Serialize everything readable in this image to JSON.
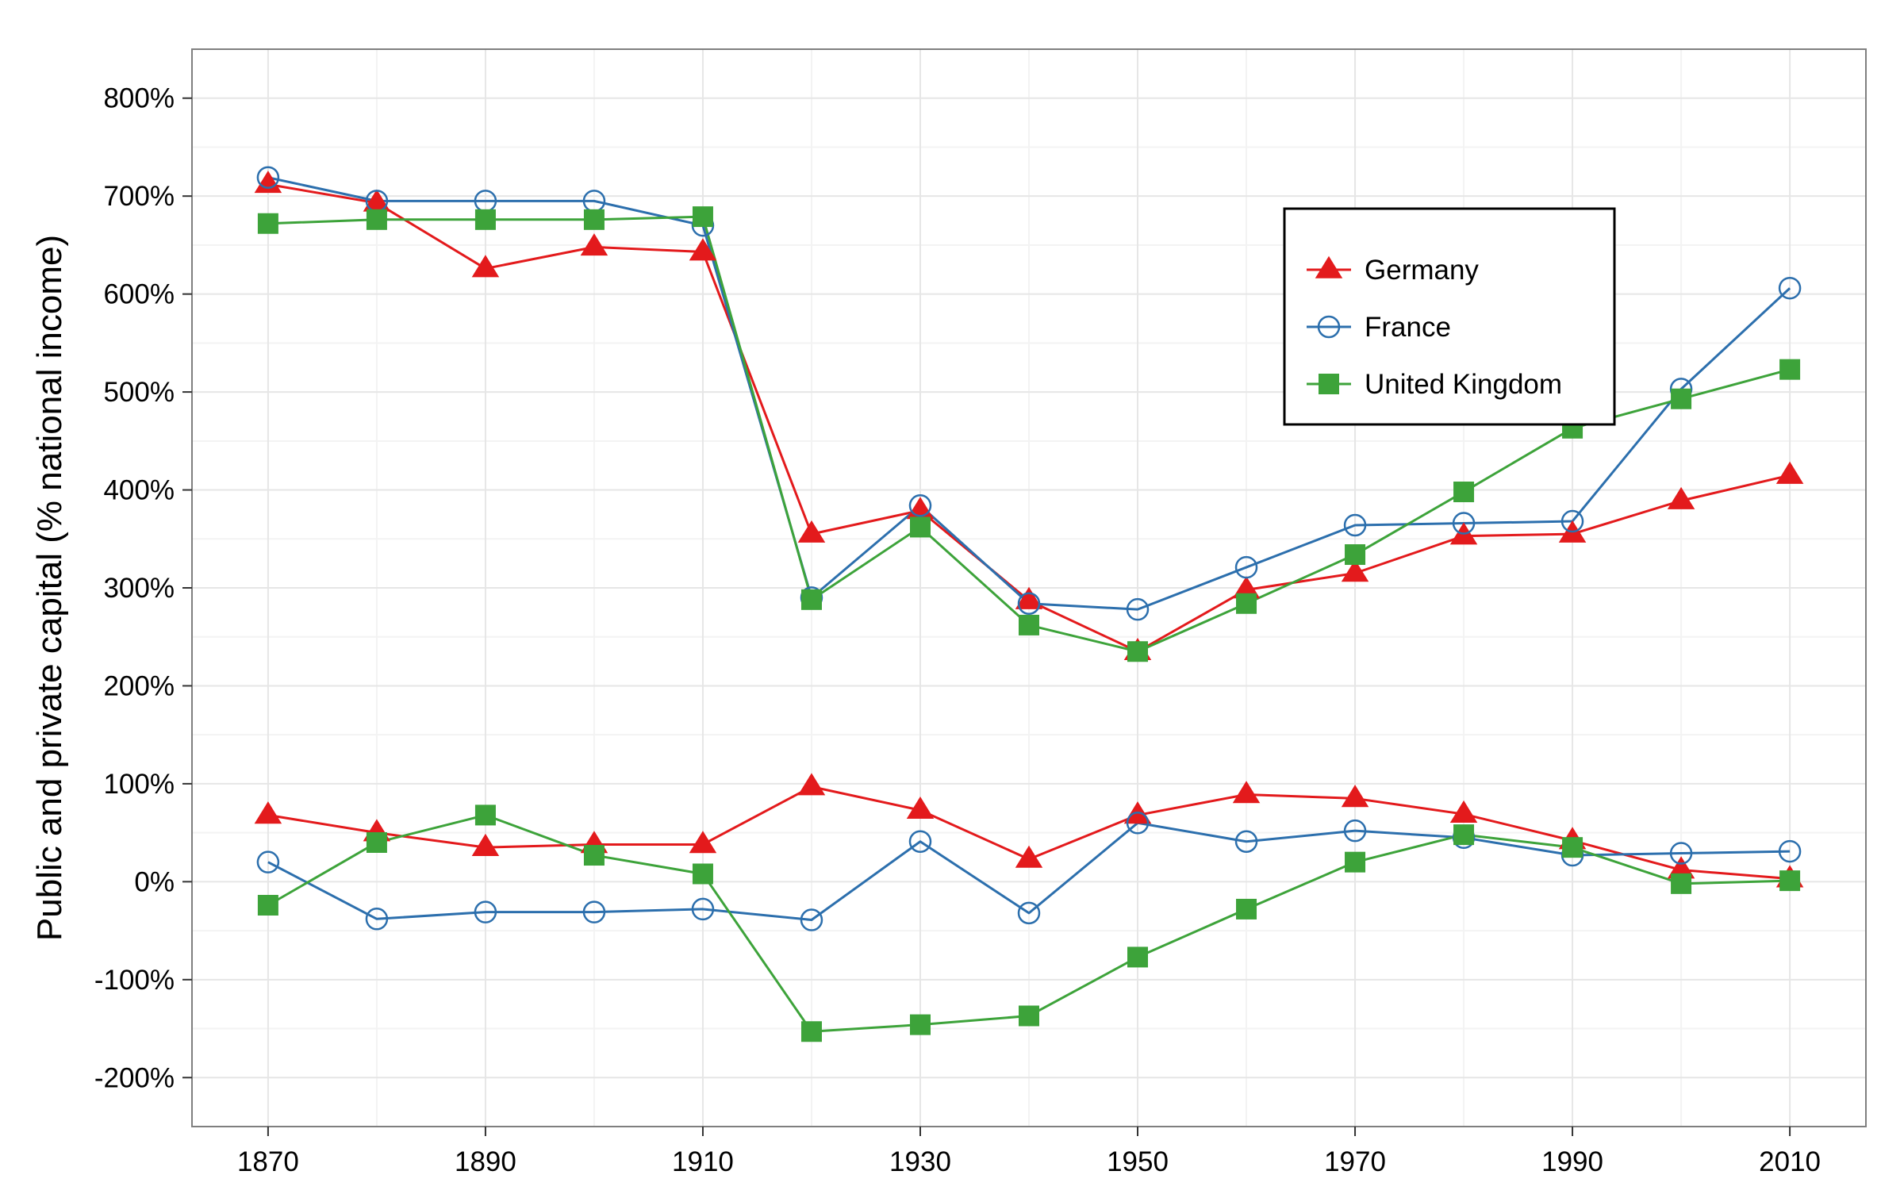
{
  "chart_data": {
    "type": "line",
    "title": "",
    "xlabel": "",
    "ylabel": "Public and private capital (% national income)",
    "x": [
      1870,
      1880,
      1890,
      1900,
      1910,
      1920,
      1930,
      1940,
      1950,
      1960,
      1970,
      1980,
      1990,
      2000,
      2010
    ],
    "xlim": [
      1863,
      2017
    ],
    "ylim": [
      -250,
      850
    ],
    "x_ticks": [
      {
        "value": 1870,
        "label": "1870"
      },
      {
        "value": 1890,
        "label": "1890"
      },
      {
        "value": 1910,
        "label": "1910"
      },
      {
        "value": 1930,
        "label": "1930"
      },
      {
        "value": 1950,
        "label": "1950"
      },
      {
        "value": 1970,
        "label": "1970"
      },
      {
        "value": 1990,
        "label": "1990"
      },
      {
        "value": 2010,
        "label": "2010"
      }
    ],
    "y_ticks": [
      {
        "value": 800,
        "label": "800%"
      },
      {
        "value": 700,
        "label": "700%"
      },
      {
        "value": 600,
        "label": "600%"
      },
      {
        "value": 500,
        "label": "500%"
      },
      {
        "value": 400,
        "label": "400%"
      },
      {
        "value": 300,
        "label": "300%"
      },
      {
        "value": 200,
        "label": "200%"
      },
      {
        "value": 100,
        "label": "100%"
      },
      {
        "value": 0,
        "label": "0%"
      },
      {
        "value": -100,
        "label": "-100%"
      },
      {
        "value": -200,
        "label": "-200%"
      }
    ],
    "grid": true,
    "legend_position": "top-right",
    "series": [
      {
        "name": "Germany",
        "group": "private",
        "color": "#e31a1c",
        "marker": "triangle",
        "values": [
          712,
          693,
          626,
          648,
          643,
          355,
          379,
          287,
          235,
          298,
          315,
          353,
          355,
          389,
          415
        ]
      },
      {
        "name": "France",
        "group": "private",
        "color": "#2c6fad",
        "marker": "circle-open",
        "values": [
          719,
          695,
          695,
          695,
          670,
          290,
          384,
          284,
          278,
          321,
          364,
          366,
          368,
          503,
          606
        ]
      },
      {
        "name": "United Kingdom",
        "group": "private",
        "color": "#3da33a",
        "marker": "square",
        "values": [
          672,
          676,
          676,
          676,
          679,
          288,
          362,
          262,
          235,
          284,
          334,
          398,
          463,
          493,
          523
        ]
      },
      {
        "name": "Germany",
        "group": "public",
        "color": "#e31a1c",
        "marker": "triangle",
        "values": [
          68,
          50,
          35,
          38,
          38,
          97,
          73,
          23,
          68,
          89,
          85,
          69,
          42,
          12,
          3
        ]
      },
      {
        "name": "France",
        "group": "public",
        "color": "#2c6fad",
        "marker": "circle-open",
        "values": [
          20,
          -38,
          -31,
          -31,
          -28,
          -39,
          41,
          -32,
          60,
          41,
          52,
          45,
          27,
          29,
          31
        ]
      },
      {
        "name": "United Kingdom",
        "group": "public",
        "color": "#3da33a",
        "marker": "square",
        "values": [
          -24,
          40,
          68,
          27,
          8,
          -153,
          -146,
          -137,
          -77,
          -28,
          20,
          48,
          35,
          -2,
          1
        ]
      }
    ]
  },
  "legend": {
    "items": [
      {
        "label": "Germany",
        "color": "#e31a1c",
        "marker": "triangle"
      },
      {
        "label": "France",
        "color": "#2c6fad",
        "marker": "circle-open"
      },
      {
        "label": "United Kingdom",
        "color": "#3da33a",
        "marker": "square"
      }
    ]
  },
  "colors": {
    "panel_border": "#7f7f7f",
    "grid_major": "#e6e6e6",
    "grid_minor": "#f3f3f3"
  }
}
